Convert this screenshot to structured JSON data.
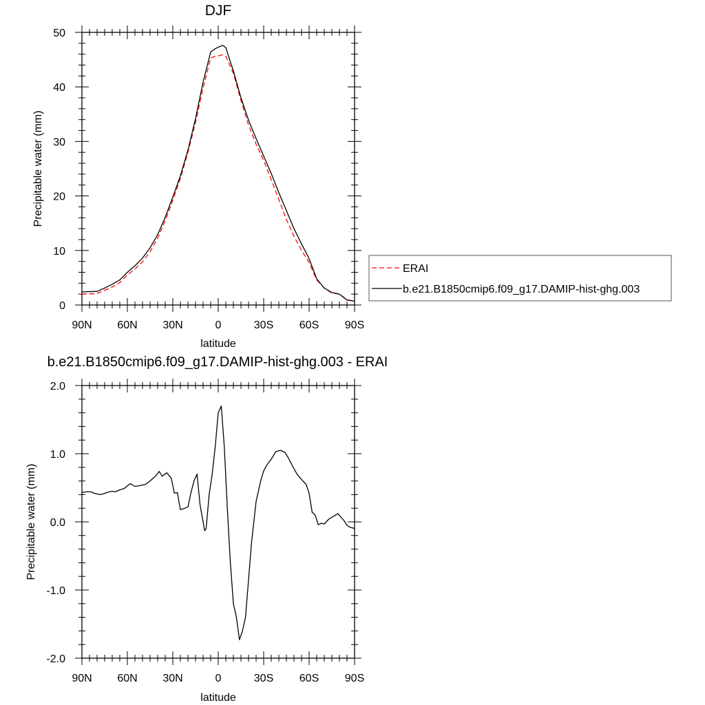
{
  "chart_data": [
    {
      "type": "line",
      "title": "DJF",
      "xlabel": "latitude",
      "ylabel": "Precipitable water (mm)",
      "xlim": [
        90,
        -90
      ],
      "ylim": [
        0,
        50
      ],
      "x_ticks": [
        90,
        60,
        30,
        0,
        -30,
        -60,
        -90
      ],
      "x_tick_labels": [
        "90N",
        "60N",
        "30N",
        "0",
        "30S",
        "60S",
        "90S"
      ],
      "y_ticks": [
        0,
        10,
        20,
        30,
        40,
        50
      ],
      "y_tick_labels": [
        "0",
        "10",
        "20",
        "30",
        "40",
        "50"
      ],
      "grid": false,
      "legend_position": "right",
      "series": [
        {
          "name": "ERAI",
          "color": "#ff0000",
          "dash": "dashed",
          "x": [
            90,
            80,
            75,
            70,
            65,
            60,
            55,
            50,
            45,
            40,
            35,
            30,
            25,
            20,
            15,
            10,
            5,
            2,
            0,
            -3,
            -5,
            -10,
            -15,
            -20,
            -25,
            -30,
            -35,
            -40,
            -45,
            -50,
            -55,
            -60,
            -65,
            -70,
            -75,
            -80,
            -85,
            -88,
            -90
          ],
          "y": [
            2.0,
            2.1,
            2.7,
            3.3,
            4.1,
            5.5,
            6.6,
            7.9,
            9.8,
            12.2,
            15.5,
            19.2,
            23.2,
            28.0,
            33.5,
            39.8,
            45.3,
            45.6,
            45.7,
            45.9,
            45.6,
            42.5,
            37.5,
            33.0,
            29.5,
            26.5,
            23.0,
            19.3,
            15.7,
            12.6,
            10.0,
            7.8,
            4.6,
            3.1,
            2.2,
            2.0,
            1.0,
            0.8,
            0.7
          ]
        },
        {
          "name": "b.e21.B1850cmip6.f09_g17.DAMIP-hist-ghg.003",
          "color": "#000000",
          "dash": "solid",
          "x": [
            90,
            80,
            75,
            70,
            65,
            60,
            55,
            50,
            45,
            40,
            35,
            30,
            25,
            20,
            15,
            10,
            5,
            2,
            0,
            -3,
            -5,
            -10,
            -15,
            -20,
            -25,
            -30,
            -35,
            -40,
            -45,
            -50,
            -55,
            -60,
            -65,
            -70,
            -75,
            -80,
            -85,
            -88,
            -90
          ],
          "y": [
            2.4,
            2.5,
            3.1,
            3.8,
            4.6,
            6.0,
            7.2,
            8.6,
            10.5,
            12.9,
            16.1,
            19.8,
            23.7,
            28.4,
            34.2,
            40.9,
            46.4,
            47.0,
            47.3,
            47.6,
            47.2,
            42.9,
            38.0,
            33.9,
            30.5,
            27.3,
            24.1,
            20.6,
            17.3,
            14.0,
            11.2,
            8.5,
            4.8,
            3.1,
            2.3,
            2.0,
            0.9,
            0.8,
            0.7
          ]
        }
      ]
    },
    {
      "type": "line",
      "title": "b.e21.B1850cmip6.f09_g17.DAMIP-hist-ghg.003 - ERAI",
      "xlabel": "latitude",
      "ylabel": "Precipitable water (mm)",
      "xlim": [
        90,
        -90
      ],
      "ylim": [
        -2.0,
        2.0
      ],
      "x_ticks": [
        90,
        60,
        30,
        0,
        -30,
        -60,
        -90
      ],
      "x_tick_labels": [
        "90N",
        "60N",
        "30N",
        "0",
        "30S",
        "60S",
        "90S"
      ],
      "y_ticks": [
        -2.0,
        -1.0,
        0.0,
        1.0,
        2.0
      ],
      "y_tick_labels": [
        "-2.0",
        "-1.0",
        "0.0",
        "1.0",
        "2.0"
      ],
      "grid": false,
      "series": [
        {
          "color": "#000000",
          "dash": "solid",
          "x": [
            90,
            87,
            84,
            82,
            78,
            76,
            72,
            70,
            68,
            65,
            62,
            60,
            58,
            55,
            52,
            48,
            45,
            43,
            41,
            39,
            37,
            34,
            31,
            29,
            27,
            25,
            22,
            20,
            18,
            16,
            14,
            12,
            10,
            9,
            8,
            6,
            4,
            2,
            0,
            -2,
            -4,
            -6,
            -8,
            -10,
            -12,
            -14,
            -16,
            -18,
            -22,
            -25,
            -28,
            -30,
            -32,
            -35,
            -38,
            -41,
            -44,
            -46,
            -49,
            -52,
            -55,
            -58,
            -60,
            -62,
            -64,
            -66,
            -68,
            -70,
            -73,
            -76,
            -79,
            -81,
            -83,
            -85,
            -87,
            -89,
            -90
          ],
          "y": [
            0.43,
            0.44,
            0.44,
            0.42,
            0.4,
            0.41,
            0.44,
            0.45,
            0.44,
            0.47,
            0.49,
            0.53,
            0.56,
            0.52,
            0.53,
            0.55,
            0.6,
            0.64,
            0.68,
            0.74,
            0.67,
            0.72,
            0.64,
            0.42,
            0.43,
            0.18,
            0.2,
            0.22,
            0.43,
            0.6,
            0.7,
            0.25,
            0.0,
            -0.13,
            -0.1,
            0.4,
            0.7,
            1.1,
            1.6,
            1.7,
            1.1,
            0.2,
            -0.6,
            -1.2,
            -1.4,
            -1.73,
            -1.6,
            -1.4,
            -0.3,
            0.3,
            0.6,
            0.75,
            0.83,
            0.92,
            1.03,
            1.05,
            1.02,
            0.95,
            0.82,
            0.7,
            0.62,
            0.55,
            0.42,
            0.14,
            0.1,
            -0.04,
            -0.02,
            -0.03,
            0.04,
            0.08,
            0.12,
            0.07,
            0.02,
            -0.05,
            -0.08,
            -0.09,
            -0.1
          ]
        }
      ]
    }
  ]
}
